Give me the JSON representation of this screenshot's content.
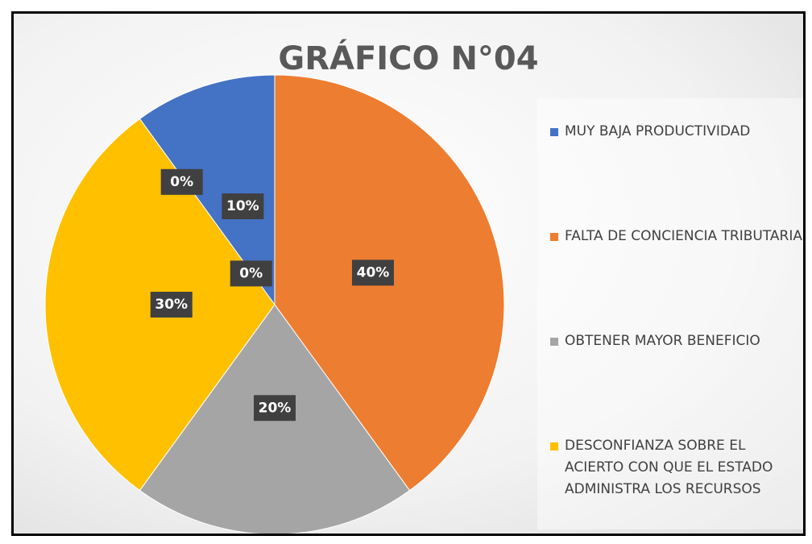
{
  "chart_data": {
    "type": "pie",
    "title": "GRÁFICO N°04",
    "categories": [
      "MUY BAJA PRODUCTIVIDAD",
      "FALTA DE CONCIENCIA TRIBUTARIA",
      "OBTENER MAYOR BENEFICIO",
      "DESCONFIANZA SOBRE EL ACIERTO CON QUE EL ESTADO ADMINISTRA LOS RECURSOS",
      null,
      null
    ],
    "values": [
      10,
      40,
      20,
      30,
      0,
      0
    ],
    "value_labels": [
      "10%",
      "40%",
      "20%",
      "30%",
      "0%",
      "0%"
    ],
    "colors": [
      "#4472c4",
      "#ed7d31",
      "#a5a5a5",
      "#ffc000",
      "#5b9bd5",
      "#70ad47"
    ],
    "legend": "right"
  }
}
